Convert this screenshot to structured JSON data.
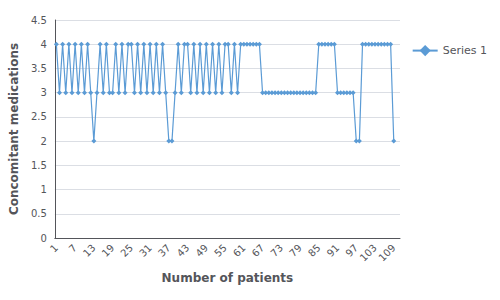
{
  "chart_data": {
    "type": "line",
    "xlabel": "Number of patients",
    "ylabel": "Concomitant medications",
    "x": [
      1,
      2,
      3,
      4,
      5,
      6,
      7,
      8,
      9,
      10,
      11,
      12,
      13,
      14,
      15,
      16,
      17,
      18,
      19,
      20,
      21,
      22,
      23,
      24,
      25,
      26,
      27,
      28,
      29,
      30,
      31,
      32,
      33,
      34,
      35,
      36,
      37,
      38,
      39,
      40,
      41,
      42,
      43,
      44,
      45,
      46,
      47,
      48,
      49,
      50,
      51,
      52,
      53,
      54,
      55,
      56,
      57,
      58,
      59,
      60,
      61,
      62,
      63,
      64,
      65,
      66,
      67,
      68,
      69,
      70,
      71,
      72,
      73,
      74,
      75,
      76,
      77,
      78,
      79,
      80,
      81,
      82,
      83,
      84,
      85,
      86,
      87,
      88,
      89,
      90,
      91,
      92,
      93,
      94,
      95,
      96,
      97,
      98,
      99,
      100,
      101,
      102,
      103,
      104,
      105,
      106,
      107,
      108,
      109
    ],
    "series": [
      {
        "name": "Series 1",
        "color": "#5B9BD5",
        "marker": "diamond",
        "values": [
          4,
          3,
          4,
          3,
          4,
          3,
          4,
          3,
          4,
          3,
          4,
          3,
          2,
          3,
          4,
          3,
          4,
          3,
          3,
          4,
          3,
          4,
          3,
          4,
          4,
          3,
          4,
          3,
          4,
          3,
          4,
          3,
          4,
          3,
          4,
          3,
          2,
          2,
          3,
          4,
          3,
          4,
          4,
          3,
          4,
          3,
          4,
          3,
          4,
          3,
          4,
          3,
          4,
          3,
          4,
          4,
          3,
          4,
          3,
          4,
          4,
          4,
          4,
          4,
          4,
          4,
          3,
          3,
          3,
          3,
          3,
          3,
          3,
          3,
          3,
          3,
          3,
          3,
          3,
          3,
          3,
          3,
          3,
          3,
          4,
          4,
          4,
          4,
          4,
          4,
          3,
          3,
          3,
          3,
          3,
          3,
          2,
          2,
          4,
          4,
          4,
          4,
          4,
          4,
          4,
          4,
          4,
          4,
          2
        ]
      }
    ],
    "xlim": [
      0.5,
      111
    ],
    "xticks": [
      1,
      7,
      13,
      19,
      25,
      31,
      37,
      43,
      49,
      55,
      61,
      67,
      73,
      79,
      85,
      91,
      97,
      103,
      109
    ],
    "ylim": [
      0,
      4.5
    ],
    "yticks": [
      0,
      0.5,
      1,
      1.5,
      2,
      2.5,
      3,
      3.5,
      4,
      4.5
    ],
    "grid": true,
    "legend": "right"
  }
}
